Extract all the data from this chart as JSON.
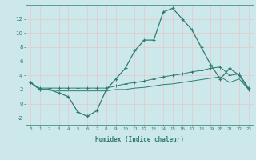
{
  "xlabel": "Humidex (Indice chaleur)",
  "ylabel": "",
  "xlim": [
    -0.5,
    23.5
  ],
  "ylim": [
    -3,
    14
  ],
  "yticks": [
    -2,
    0,
    2,
    4,
    6,
    8,
    10,
    12
  ],
  "xticks": [
    0,
    1,
    2,
    3,
    4,
    5,
    6,
    7,
    8,
    9,
    10,
    11,
    12,
    13,
    14,
    15,
    16,
    17,
    18,
    19,
    20,
    21,
    22,
    23
  ],
  "background_color": "#cde8ea",
  "grid_color": "#f0f0f0",
  "line_color": "#2e7d6e",
  "line1_x": [
    0,
    1,
    2,
    3,
    4,
    5,
    6,
    7,
    8,
    9,
    10,
    11,
    12,
    13,
    14,
    15,
    16,
    17,
    18,
    19,
    20,
    21,
    22,
    23
  ],
  "line1_y": [
    3,
    2,
    2,
    1.5,
    1,
    -1.2,
    -1.8,
    -1,
    2,
    3.5,
    5,
    7.5,
    9,
    9,
    13,
    13.5,
    12,
    10.5,
    8,
    5.5,
    3.5,
    5,
    4,
    2
  ],
  "line2_x": [
    0,
    1,
    2,
    3,
    4,
    5,
    6,
    7,
    8,
    9,
    10,
    11,
    12,
    13,
    14,
    15,
    16,
    17,
    18,
    19,
    20,
    21,
    22,
    23
  ],
  "line2_y": [
    3,
    2.2,
    2.2,
    2.2,
    2.2,
    2.2,
    2.2,
    2.2,
    2.2,
    2.5,
    2.8,
    3.0,
    3.2,
    3.5,
    3.8,
    4.0,
    4.2,
    4.5,
    4.7,
    5.0,
    5.2,
    4.0,
    4.2,
    2.2
  ],
  "line3_x": [
    0,
    1,
    2,
    3,
    4,
    5,
    6,
    7,
    8,
    9,
    10,
    11,
    12,
    13,
    14,
    15,
    16,
    17,
    18,
    19,
    20,
    21,
    22,
    23
  ],
  "line3_y": [
    3,
    2,
    2,
    1.8,
    1.8,
    1.8,
    1.8,
    1.8,
    1.8,
    2.0,
    2.0,
    2.2,
    2.3,
    2.5,
    2.7,
    2.8,
    3.0,
    3.2,
    3.4,
    3.6,
    3.8,
    3.0,
    3.5,
    2.0
  ],
  "xlabel_fontsize": 5.5,
  "ylabel_fontsize": 5,
  "xtick_fontsize": 4.2,
  "ytick_fontsize": 5
}
